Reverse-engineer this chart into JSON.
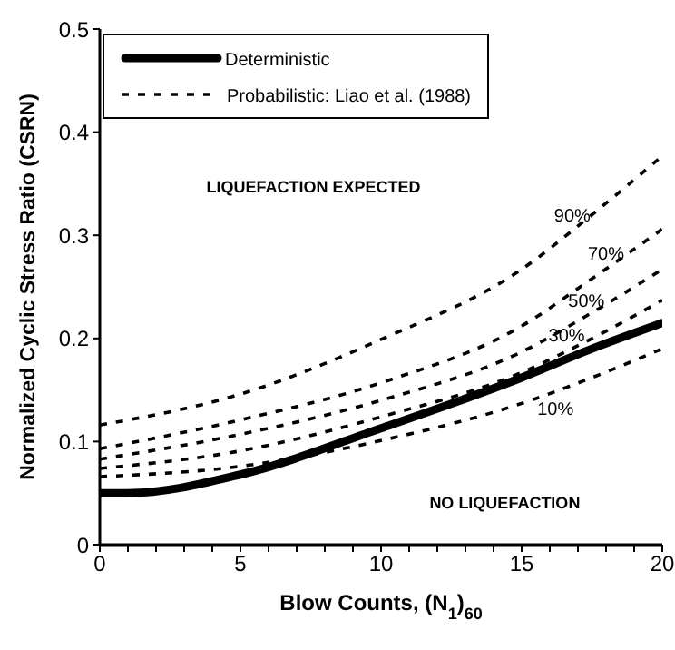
{
  "chart_data": {
    "type": "line",
    "xlabel": "Blow Counts, (N$_{1}$)$_{60}$",
    "ylabel": "Normalized Cyclic Stress Ratio (CSRN)",
    "xlim": [
      0,
      20
    ],
    "ylim": [
      0,
      0.5
    ],
    "xticks": [
      0,
      {
        "value": 1,
        "label": null
      },
      {
        "value": 2,
        "label": null
      },
      {
        "value": 3,
        "label": null
      },
      {
        "value": 4,
        "label": null
      },
      5,
      {
        "value": 6,
        "label": null
      },
      {
        "value": 7,
        "label": null
      },
      {
        "value": 8,
        "label": null
      },
      {
        "value": 9,
        "label": null
      },
      10,
      {
        "value": 11,
        "label": null
      },
      {
        "value": 12,
        "label": null
      },
      {
        "value": 13,
        "label": null
      },
      {
        "value": 14,
        "label": null
      },
      15,
      {
        "value": 16,
        "label": null
      },
      {
        "value": 17,
        "label": null
      },
      {
        "value": 18,
        "label": null
      },
      {
        "value": 19,
        "label": null
      },
      20
    ],
    "yticks": [
      0,
      0.1,
      0.2,
      0.3,
      0.4,
      0.5
    ],
    "grid": false,
    "legend": "top left",
    "marker": "none",
    "series": [
      {
        "name": "Deterministic",
        "color": "#000000",
        "line_style": "solid",
        "x": [
          0,
          1,
          5,
          10,
          15,
          17.5,
          20
        ],
        "values": [
          0.05,
          0.05,
          0.068,
          0.113,
          0.162,
          0.19,
          0.215
        ]
      },
      {
        "color": "#000000",
        "line_style": "dashed",
        "x": [
          0,
          5,
          10,
          15,
          17.5,
          20
        ],
        "values": [
          0.116,
          0.146,
          0.199,
          0.267,
          0.32,
          0.377
        ]
      },
      {
        "color": "#000000",
        "line_style": "dashed",
        "x": [
          0,
          5,
          10,
          15,
          17.5,
          20
        ],
        "values": [
          0.093,
          0.121,
          0.157,
          0.212,
          0.258,
          0.306
        ]
      },
      {
        "color": "#000000",
        "line_style": "dashed",
        "x": [
          0,
          5,
          10,
          15,
          17.5,
          20
        ],
        "values": [
          0.083,
          0.107,
          0.14,
          0.187,
          0.225,
          0.267
        ]
      },
      {
        "color": "#000000",
        "line_style": "dashed",
        "x": [
          0,
          5,
          10,
          15,
          17.5,
          20
        ],
        "values": [
          0.074,
          0.091,
          0.124,
          0.167,
          0.2,
          0.237
        ]
      },
      {
        "color": "#000000",
        "line_style": "dashed",
        "x": [
          0,
          5,
          10,
          15,
          17.5,
          20
        ],
        "values": [
          0.066,
          0.076,
          0.101,
          0.137,
          0.162,
          0.19
        ]
      }
    ],
    "annotations": [
      "Probabilistic: Liao et al. (1988)",
      "LIQUEFACTION EXPECTED",
      "NO LIQUEFACTION",
      {
        "text": "90%",
        "x": 16.8,
        "y": 0.305
      },
      {
        "text": "70%",
        "x": 18,
        "y": 0.268
      },
      {
        "text": "50%",
        "x": 17.3,
        "y": 0.222
      },
      {
        "text": "30%",
        "x": 16.6,
        "y": 0.188
      },
      {
        "text": "10%",
        "x": 16.2,
        "y": 0.152
      }
    ]
  }
}
